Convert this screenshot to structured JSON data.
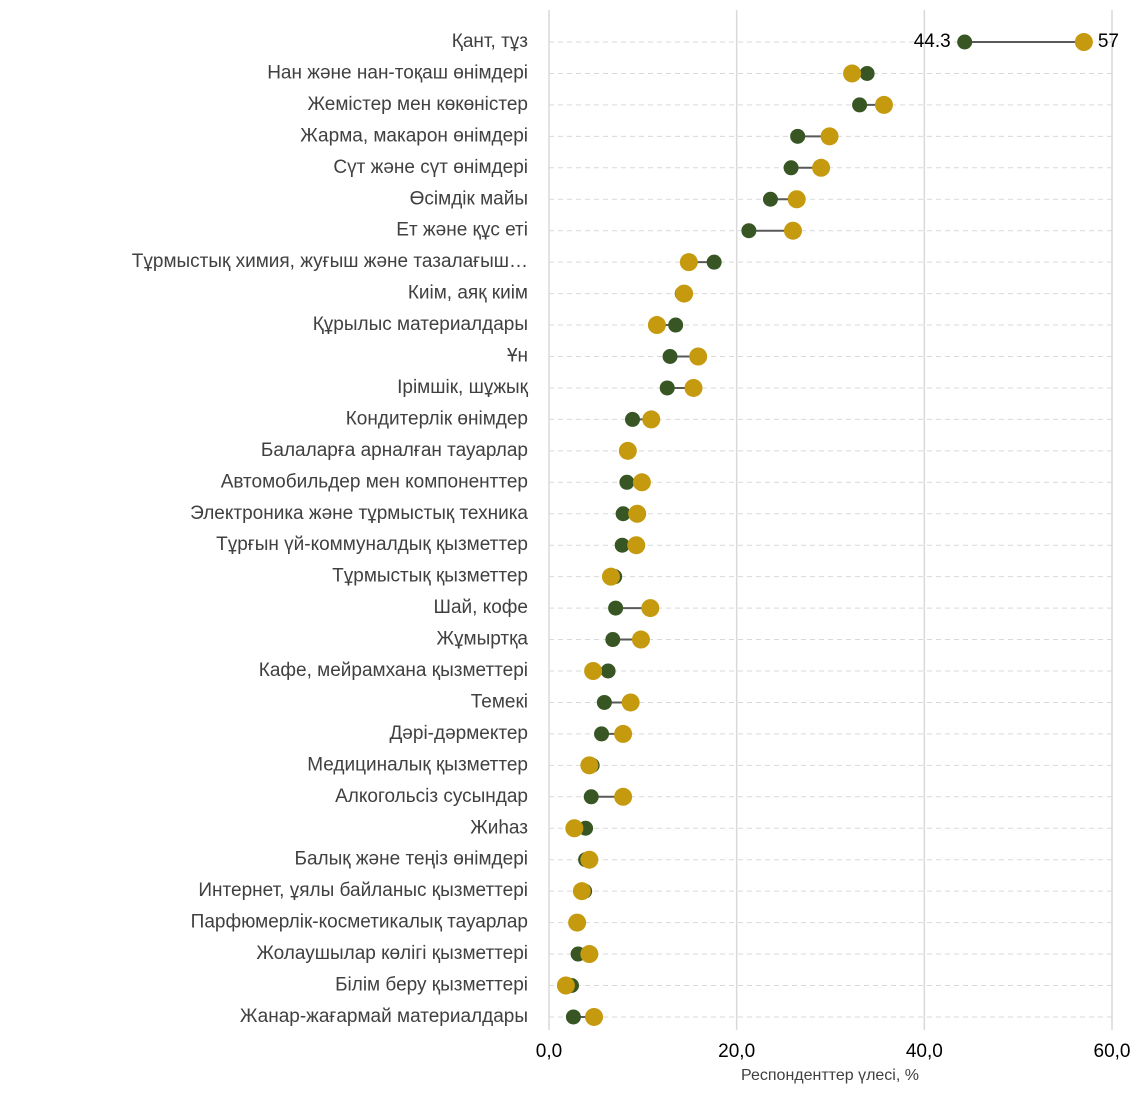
{
  "chart_data": {
    "type": "dumbbell",
    "x_label": "Респонденттер үлесі, %",
    "categories": [
      "Қант, тұз",
      "Нан және нан-тоқаш өнімдері",
      "Жемістер мен көкөністер",
      "Жарма, макарон өнімдері",
      "Сүт және сүт өнімдері",
      "Өсімдік майы",
      "Ет және құс еті",
      "Тұрмыстық химия, жуғыш және тазалағыш…",
      "Киім, аяқ киім",
      "Құрылыс материалдары",
      "Ұн",
      "Ірімшік, шұжық",
      "Кондитерлік өнімдер",
      "Балаларға арналған тауарлар",
      "Автомобильдер мен компоненттер",
      "Электроника және тұрмыстық техника",
      "Тұрғын үй-коммуналдық қызметтер",
      "Тұрмыстық қызметтер",
      "Шай, кофе",
      "Жұмыртқа",
      "Кафе, мейрамхана қызметтері",
      "Темекі",
      "Дәрі-дәрмектер",
      "Медициналық қызметтер",
      "Алкогольсіз сусындар",
      "Жиһаз",
      "Балық және теңіз өнімдері",
      "Интернет, ұялы байланыс қызметтері",
      "Парфюмерлік-косметикалық тауарлар",
      "Жолаушылар көлігі қызметтері",
      "Білім беру қызметтері",
      "Жанар-жағармай материалдары"
    ],
    "series": [
      {
        "color": "#375623",
        "values": [
          44.3,
          33.9,
          33.1,
          26.5,
          25.8,
          23.6,
          21.3,
          17.6,
          14.2,
          13.5,
          12.9,
          12.6,
          8.9,
          8.3,
          8.3,
          7.9,
          7.8,
          7.0,
          7.1,
          6.8,
          6.3,
          5.9,
          5.6,
          4.6,
          4.5,
          3.9,
          3.9,
          3.8,
          3.1,
          3.1,
          2.4,
          2.6
        ],
        "value_labels": [
          "44.3",
          null,
          null,
          null,
          null,
          null,
          null,
          null,
          null,
          null,
          null,
          null,
          null,
          null,
          null,
          null,
          null,
          null,
          null,
          null,
          null,
          null,
          null,
          null,
          null,
          null,
          null,
          null,
          null,
          null,
          null,
          null
        ]
      },
      {
        "color": "#C59A0E",
        "values": [
          57,
          32.3,
          35.7,
          29.9,
          29.0,
          26.4,
          26.0,
          14.9,
          14.4,
          11.5,
          15.9,
          15.4,
          10.9,
          8.4,
          9.9,
          9.4,
          9.3,
          6.6,
          10.8,
          9.8,
          4.7,
          8.7,
          7.9,
          4.3,
          7.9,
          2.7,
          4.3,
          3.5,
          3.0,
          4.3,
          1.8,
          4.8
        ],
        "value_labels": [
          "57",
          null,
          null,
          null,
          null,
          null,
          null,
          null,
          null,
          null,
          null,
          null,
          null,
          null,
          null,
          null,
          null,
          null,
          null,
          null,
          null,
          null,
          null,
          null,
          null,
          null,
          null,
          null,
          null,
          null,
          null,
          null
        ]
      }
    ],
    "xlim": [
      0,
      60
    ],
    "xticks": [
      {
        "value": 0,
        "label": "0,0"
      },
      {
        "value": 20,
        "label": "20,0"
      },
      {
        "value": 40,
        "label": "40,0"
      },
      {
        "value": 60,
        "label": "60,0"
      }
    ],
    "grid": true
  }
}
